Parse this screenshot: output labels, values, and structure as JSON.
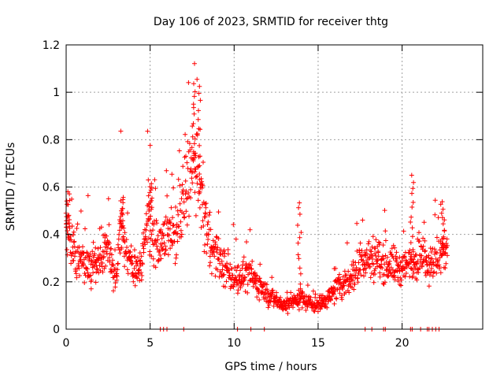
{
  "chart_data": {
    "type": "scatter",
    "title": "Day 106 of 2023, SRMTID for receiver thtg",
    "xlabel": "GPS time / hours",
    "ylabel": "SRMTID / TECUs",
    "xlim": [
      0,
      24.8
    ],
    "ylim": [
      0,
      1.2
    ],
    "xticks": [
      0,
      5,
      10,
      15,
      20
    ],
    "xtick_labels": [
      "0",
      "5",
      "10",
      "15",
      "20"
    ],
    "yticks": [
      0,
      0.2,
      0.4,
      0.6,
      0.8,
      1,
      1.2
    ],
    "ytick_labels": [
      "0",
      "0.2",
      "0.4",
      "0.6",
      "0.8",
      "1",
      "1.2"
    ],
    "grid": true,
    "marker": "+",
    "color": "#ff0000",
    "series": [
      {
        "name": "SRMTID",
        "x_range": [
          0,
          22.7
        ],
        "trend_x": [
          0,
          0.5,
          1,
          1.5,
          2,
          2.5,
          3,
          3.2,
          3.5,
          4,
          4.5,
          4.9,
          5.2,
          5.6,
          6,
          6.5,
          7,
          7.5,
          7.9,
          8.2,
          8.6,
          9,
          9.5,
          10,
          10.5,
          11,
          11.5,
          12,
          12.5,
          13,
          13.5,
          14,
          14.5,
          15,
          15.5,
          16,
          16.5,
          17,
          17.5,
          18,
          18.5,
          19,
          19.5,
          20,
          20.5,
          21,
          21.5,
          22,
          22.7
        ],
        "trend_y": [
          0.42,
          0.33,
          0.3,
          0.27,
          0.28,
          0.35,
          0.2,
          0.45,
          0.35,
          0.25,
          0.28,
          0.5,
          0.4,
          0.3,
          0.45,
          0.38,
          0.55,
          0.7,
          0.6,
          0.5,
          0.35,
          0.3,
          0.25,
          0.22,
          0.22,
          0.23,
          0.18,
          0.15,
          0.12,
          0.1,
          0.12,
          0.13,
          0.11,
          0.1,
          0.13,
          0.16,
          0.2,
          0.22,
          0.28,
          0.3,
          0.3,
          0.28,
          0.27,
          0.25,
          0.28,
          0.3,
          0.28,
          0.3,
          0.33
        ],
        "peaks": [
          {
            "x": 0.1,
            "y": 0.58
          },
          {
            "x": 3.3,
            "y": 0.56
          },
          {
            "x": 5.0,
            "y": 0.63
          },
          {
            "x": 7.6,
            "y": 1.04
          },
          {
            "x": 7.9,
            "y": 1.06
          },
          {
            "x": 13.9,
            "y": 0.54
          },
          {
            "x": 20.6,
            "y": 0.65
          },
          {
            "x": 22.4,
            "y": 0.54
          }
        ],
        "zero_points_x": [
          5.6,
          5.8,
          6.0,
          7.0,
          10.2,
          11.0,
          11.8,
          17.8,
          18.2,
          18.9,
          19.0,
          20.5,
          20.6,
          21.1,
          21.5,
          21.6,
          21.8,
          22.0,
          22.2
        ]
      }
    ]
  }
}
